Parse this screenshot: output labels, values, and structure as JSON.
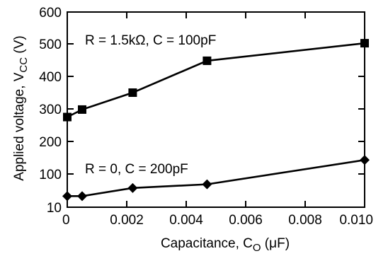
{
  "chart_data": {
    "type": "line",
    "xlabel": "Capacitance,  C",
    "xlabel_sub": "O",
    "xlabel_unit": "  (μF)",
    "ylabel": "Applied voltage,  V",
    "ylabel_sub": "CC",
    "ylabel_unit": "  (V)",
    "xlim": [
      0,
      0.01
    ],
    "ylim": [
      10,
      600
    ],
    "x_ticks": [
      0,
      0.002,
      0.004,
      0.006,
      0.008,
      0.01
    ],
    "x_tick_labels": [
      "0",
      "0.002",
      "0.004",
      "0.006",
      "0.008",
      "0.010"
    ],
    "y_ticks": [
      10,
      100,
      200,
      300,
      400,
      500,
      600
    ],
    "y_tick_labels": [
      "10",
      "100",
      "200",
      "300",
      "400",
      "500",
      "600"
    ],
    "grid": false,
    "series": [
      {
        "name": "R = 1.5kΩ, C = 100pF",
        "marker": "square",
        "x": [
          0,
          0.0005,
          0.0022,
          0.0047,
          0.01
        ],
        "y": [
          275,
          298,
          350,
          448,
          502
        ]
      },
      {
        "name": "R = 0, C = 200pF",
        "marker": "diamond",
        "x": [
          0,
          0.0005,
          0.0022,
          0.0047,
          0.01
        ],
        "y": [
          40,
          40,
          62,
          72,
          143
        ]
      }
    ]
  }
}
